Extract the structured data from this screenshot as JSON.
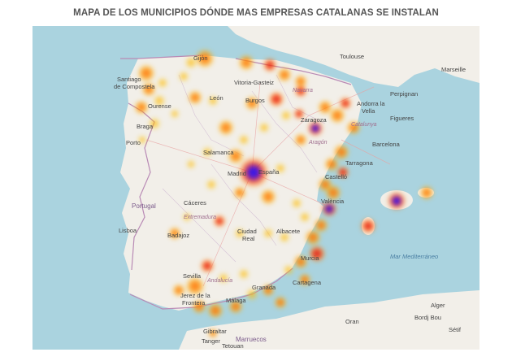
{
  "title": "MAPA DE LOS MUNICIPIOS DÓNDE MAS EMPRESAS CATALANAS SE INSTALAN",
  "colors": {
    "sea": "#aad3df",
    "land": "#f2efe9",
    "border": "#b98ab5",
    "hot_blue": "#2222ee",
    "hot_red": "#e02020",
    "mid": "#ff7a00",
    "low": "#ffc400"
  },
  "labels": {
    "toulouse": "Toulouse",
    "gijon": "Gijón",
    "vitoria": "Vitoria-Gasteiz",
    "santiago": "Santiago",
    "compostela": "de Compostela",
    "ourense": "Ourense",
    "braga": "Braga",
    "porto": "Porto",
    "leon": "León",
    "burgos": "Burgos",
    "andorra": "Andorra la",
    "vella": "Vella",
    "perpignan": "Perpignan",
    "figueres": "Figueres",
    "marseille": "Marseille",
    "barcelona": "Barcelona",
    "tarragona": "Tarragona",
    "salamanca": "Salamanca",
    "madrid": "Madrid",
    "espana": "España",
    "valencia": "València",
    "castellon": "Castelló",
    "caceres": "Cáceres",
    "extremadura": "Extremadura",
    "portugal": "Portugal",
    "lisboa": "Lisboa",
    "badajoz": "Badajoz",
    "ciudad_real": "Ciudad",
    "real": "Real",
    "albacete": "Albacete",
    "murcia": "Murcia",
    "sevilla": "Sevilla",
    "andalucia": "Andalucía",
    "granada": "Granada",
    "malaga": "Málaga",
    "cartagena": "Cartagena",
    "jerez": "Jerez de la",
    "frontera": "Frontera",
    "gibraltar": "Gibraltar",
    "marruecos": "Marruecos",
    "tanger": "Tanger",
    "tetouan": "Tetouan",
    "oran": "Oran",
    "cataluna": "Catalunya",
    "aragon": "Aragón",
    "bordj": "Bordj Bou",
    "setif": "Sétif",
    "alger": "Alger",
    "navarra": "Navarra",
    "zaragoza": "Zaragoza",
    "mediterranean": "Mar Mediterráneo"
  }
}
